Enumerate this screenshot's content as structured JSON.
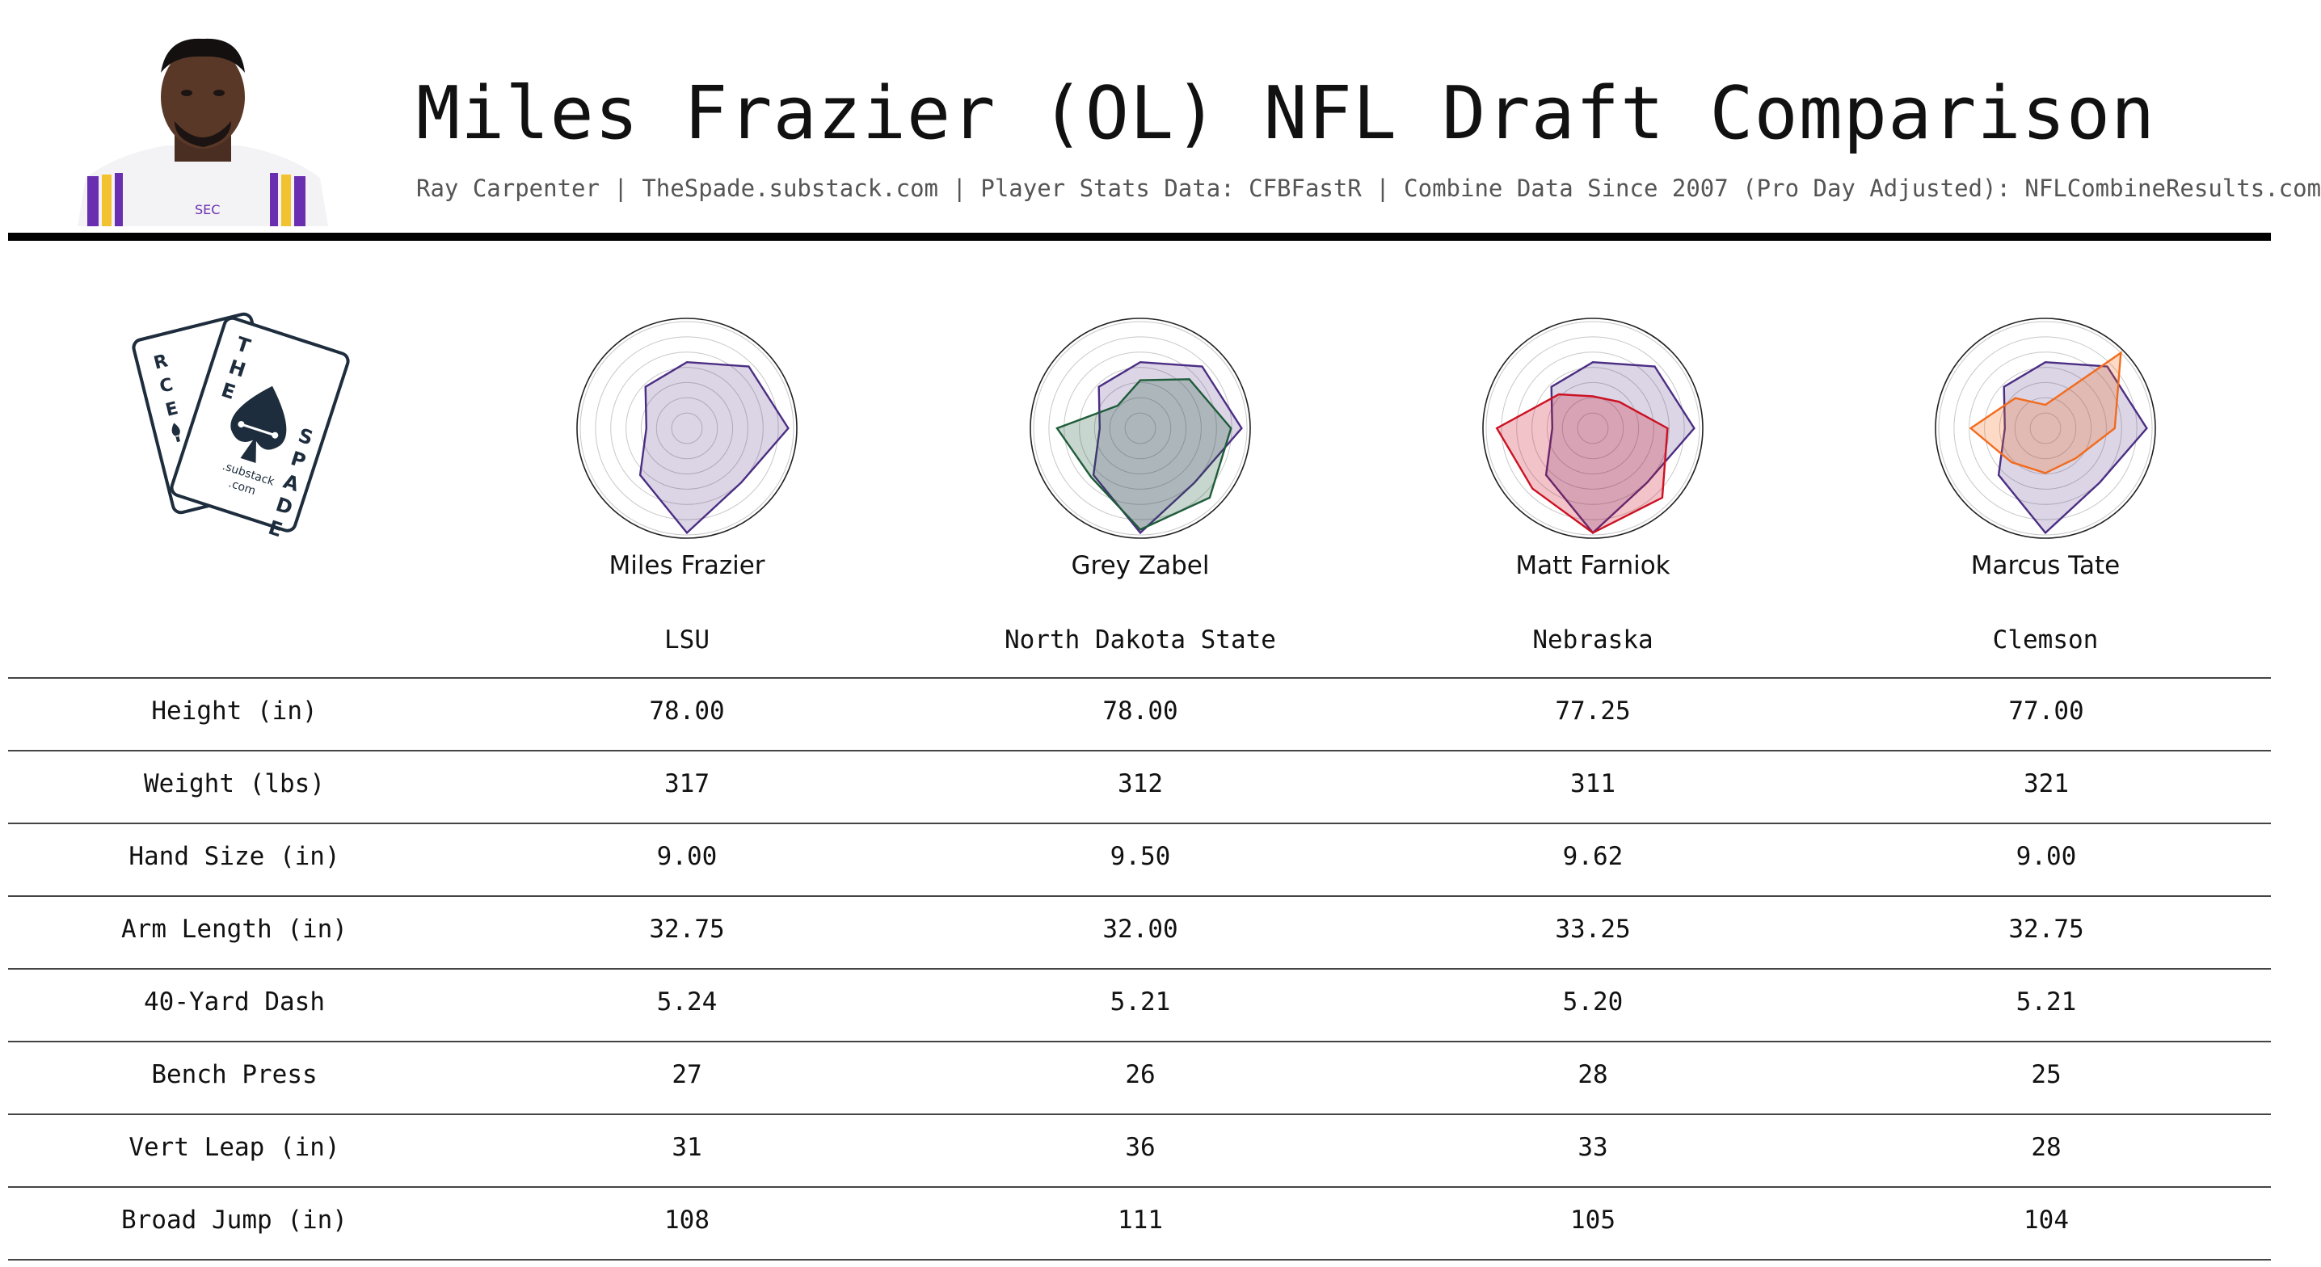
{
  "header": {
    "title": "Miles Frazier (OL) NFL Draft Comparison",
    "subtitle": "Ray Carpenter | TheSpade.substack.com | Player Stats Data: CFBFastR | Combine Data Since 2007 (Pro Day Adjusted): NFLCombineResults.com"
  },
  "logo": {
    "small_card_letters": [
      "R",
      "C",
      "E"
    ],
    "big_card_letters": [
      "T",
      "H",
      "E",
      "S",
      "P",
      "A",
      "D",
      "E"
    ],
    "substack": ".substack",
    "com": ".com"
  },
  "colors": {
    "base": "#4b2e83",
    "comparisons": [
      "#1f5c3a",
      "#cc1122",
      "#f26b1d"
    ],
    "rule": "#000000"
  },
  "players": [
    {
      "name": "Miles Frazier",
      "school": "LSU"
    },
    {
      "name": "Grey Zabel",
      "school": "North Dakota State"
    },
    {
      "name": "Matt Farniok",
      "school": "Nebraska"
    },
    {
      "name": "Marcus Tate",
      "school": "Clemson"
    }
  ],
  "table": {
    "rows": [
      {
        "label": "Height (in)",
        "values": [
          "78.00",
          "78.00",
          "77.25",
          "77.00"
        ]
      },
      {
        "label": "Weight (lbs)",
        "values": [
          "317",
          "312",
          "311",
          "321"
        ]
      },
      {
        "label": "Hand Size (in)",
        "values": [
          "9.00",
          "9.50",
          "9.62",
          "9.00"
        ]
      },
      {
        "label": "Arm Length (in)",
        "values": [
          "32.75",
          "32.00",
          "33.25",
          "32.75"
        ]
      },
      {
        "label": "40-Yard Dash",
        "values": [
          "5.24",
          "5.21",
          "5.20",
          "5.21"
        ]
      },
      {
        "label": "Bench Press",
        "values": [
          "27",
          "26",
          "28",
          "25"
        ]
      },
      {
        "label": "Vert Leap (in)",
        "values": [
          "31",
          "36",
          "33",
          "28"
        ]
      },
      {
        "label": "Broad Jump (in)",
        "values": [
          "108",
          "111",
          "105",
          "104"
        ]
      }
    ]
  },
  "chart_data": [
    {
      "type": "radar",
      "player": "Miles Frazier",
      "values": [
        0.62,
        0.82,
        0.95,
        0.72,
        0.98,
        0.62,
        0.38,
        0.55
      ],
      "range": [
        0,
        1
      ],
      "rings": 7
    },
    {
      "type": "radar",
      "player": "Grey Zabel",
      "base_values": [
        0.62,
        0.82,
        0.95,
        0.72,
        0.98,
        0.62,
        0.38,
        0.55
      ],
      "values": [
        0.45,
        0.65,
        0.85,
        0.92,
        0.95,
        0.65,
        0.78,
        0.3
      ],
      "range": [
        0,
        1
      ],
      "rings": 7
    },
    {
      "type": "radar",
      "player": "Matt Farniok",
      "base_values": [
        0.62,
        0.82,
        0.95,
        0.72,
        0.98,
        0.62,
        0.38,
        0.55
      ],
      "values": [
        0.3,
        0.35,
        0.7,
        0.92,
        0.98,
        0.8,
        0.9,
        0.45
      ],
      "range": [
        0,
        1
      ],
      "rings": 7
    },
    {
      "type": "radar",
      "player": "Marcus Tate",
      "base_values": [
        0.62,
        0.82,
        0.95,
        0.72,
        0.98,
        0.62,
        0.38,
        0.55
      ],
      "values": [
        0.22,
        1.0,
        0.65,
        0.4,
        0.42,
        0.45,
        0.7,
        0.4
      ],
      "range": [
        0,
        1
      ],
      "rings": 7
    }
  ]
}
